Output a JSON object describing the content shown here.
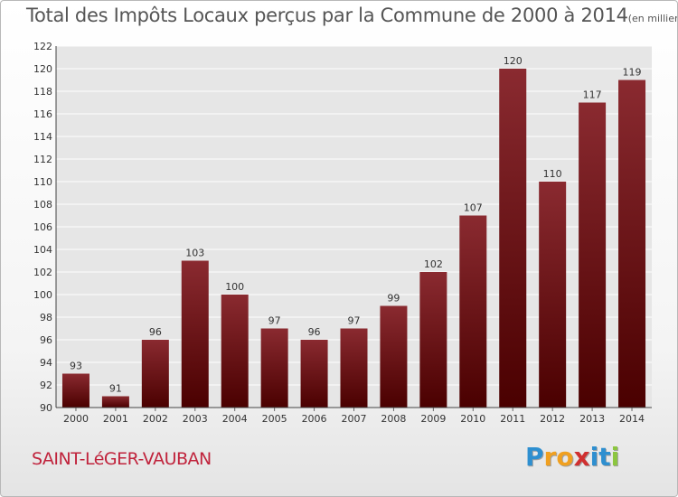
{
  "title": "Total des Impôts Locaux perçus par la Commune de 2000 à 2014",
  "title_unit": "(en milliers d'€)",
  "commune": "SAINT-LéGER-VAUBAN",
  "logo": {
    "letters": [
      "P",
      "r",
      "o",
      "x",
      "i",
      "t",
      "i"
    ],
    "colors": [
      "#2e8fd0",
      "#f0a020",
      "#f0a020",
      "#d03030",
      "#2e8fd0",
      "#2e8fd0",
      "#8cc63f"
    ]
  },
  "colors": {
    "bar_top": "#8a2a30",
    "bar_bottom": "#4a0000",
    "grid": "#ffffff"
  },
  "chart_data": {
    "type": "bar",
    "title": "Total des Impôts Locaux perçus par la Commune de 2000 à 2014",
    "xlabel": "",
    "ylabel": "",
    "categories": [
      "2000",
      "2001",
      "2002",
      "2003",
      "2004",
      "2005",
      "2006",
      "2007",
      "2008",
      "2009",
      "2010",
      "2011",
      "2012",
      "2013",
      "2014"
    ],
    "values": [
      93,
      91,
      96,
      103,
      100,
      97,
      96,
      97,
      99,
      102,
      107,
      120,
      110,
      117,
      119
    ],
    "ylim": [
      90,
      122
    ],
    "yticks": [
      90,
      92,
      94,
      96,
      98,
      100,
      102,
      104,
      106,
      108,
      110,
      112,
      114,
      116,
      118,
      120,
      122
    ],
    "grid": true
  }
}
